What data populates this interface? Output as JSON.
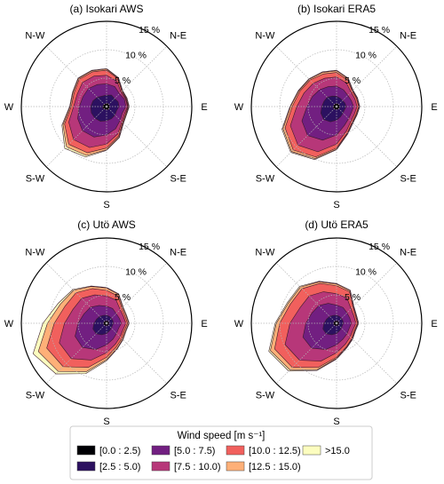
{
  "legend": {
    "title": "Wind speed [m s⁻¹]",
    "items": [
      {
        "label": "[0.0 : 2.5)",
        "color": "#000004"
      },
      {
        "label": "[2.5 : 5.0)",
        "color": "#2c1160"
      },
      {
        "label": "[5.0 : 7.5)",
        "color": "#721f81"
      },
      {
        "label": "[7.5 : 10.0)",
        "color": "#b73779"
      },
      {
        "label": "[10.0 : 12.5)",
        "color": "#f1605d"
      },
      {
        "label": "[12.5 : 15.0)",
        "color": "#feb078"
      },
      {
        "label": ">15.0",
        "color": "#fcfdbf"
      }
    ]
  },
  "chart_data": [
    {
      "type": "polar-area",
      "title": "(a) Isokari AWS",
      "directions": [
        "N",
        "NNE",
        "NE",
        "ENE",
        "E",
        "ESE",
        "SE",
        "SSE",
        "S",
        "SSW",
        "SW",
        "WSW",
        "W",
        "WNW",
        "NW",
        "NNW"
      ],
      "direction_labels": [
        "E",
        "N-E",
        "N-W",
        "W",
        "S-W",
        "S",
        "S-E"
      ],
      "rmax": 15,
      "ring_labels": [
        "5 %",
        "10 %",
        "15 %"
      ],
      "cumulative_percent": [
        [
          0.5,
          0.6,
          0.5,
          0.5,
          0.5,
          0.5,
          0.6,
          0.6,
          0.5,
          0.5,
          0.6,
          0.7,
          0.7,
          0.6,
          0.6,
          0.5
        ],
        [
          2.0,
          2.2,
          2.0,
          2.2,
          2.2,
          1.9,
          2.1,
          2.3,
          2.5,
          2.8,
          2.9,
          2.9,
          2.8,
          2.6,
          2.3,
          2.0
        ],
        [
          4.0,
          3.8,
          3.2,
          3.4,
          3.4,
          3.0,
          3.4,
          4.2,
          5.0,
          5.8,
          6.0,
          5.5,
          4.8,
          4.5,
          4.5,
          4.2
        ],
        [
          5.5,
          4.8,
          3.6,
          3.6,
          3.7,
          3.4,
          3.8,
          5.2,
          6.6,
          7.8,
          8.2,
          7.2,
          5.8,
          5.6,
          6.0,
          5.8
        ],
        [
          6.4,
          5.3,
          3.8,
          3.7,
          3.8,
          3.6,
          4.0,
          5.6,
          7.3,
          8.8,
          9.4,
          8.0,
          6.2,
          6.2,
          6.8,
          6.6
        ],
        [
          6.6,
          5.4,
          3.9,
          3.8,
          3.9,
          3.7,
          4.1,
          5.8,
          7.6,
          9.3,
          10.0,
          8.3,
          6.4,
          6.4,
          7.0,
          6.8
        ],
        [
          6.7,
          5.5,
          4.0,
          3.9,
          4.0,
          3.8,
          4.2,
          5.9,
          7.7,
          9.6,
          10.4,
          8.5,
          6.5,
          6.5,
          7.1,
          6.9
        ]
      ]
    },
    {
      "type": "polar-area",
      "title": "(b) Isokari ERA5",
      "directions": [
        "N",
        "NNE",
        "NE",
        "ENE",
        "E",
        "ESE",
        "SE",
        "SSE",
        "S",
        "SSW",
        "SW",
        "WSW",
        "W",
        "WNW",
        "NW",
        "NNW"
      ],
      "direction_labels": [
        "E",
        "N-E",
        "N-W",
        "W",
        "S-W",
        "S",
        "S-E"
      ],
      "rmax": 15,
      "ring_labels": [
        "5 %",
        "10 %",
        "15 %"
      ],
      "cumulative_percent": [
        [
          0.5,
          0.5,
          0.5,
          0.5,
          0.5,
          0.5,
          0.5,
          0.5,
          0.5,
          0.5,
          0.6,
          0.6,
          0.6,
          0.5,
          0.5,
          0.5
        ],
        [
          1.8,
          1.6,
          1.5,
          1.6,
          1.7,
          1.5,
          1.6,
          1.9,
          2.4,
          2.9,
          3.2,
          3.0,
          2.6,
          2.4,
          2.3,
          2.0
        ],
        [
          3.6,
          3.2,
          2.8,
          2.8,
          3.0,
          2.8,
          3.0,
          3.6,
          5.0,
          6.4,
          7.2,
          6.6,
          5.2,
          4.6,
          4.2,
          3.8
        ],
        [
          5.2,
          4.5,
          3.6,
          3.5,
          3.6,
          3.4,
          3.6,
          4.6,
          6.6,
          8.6,
          9.6,
          8.8,
          7.0,
          6.2,
          5.8,
          5.4
        ],
        [
          6.0,
          5.1,
          3.9,
          3.8,
          3.9,
          3.7,
          3.9,
          5.0,
          7.3,
          9.6,
          10.8,
          9.8,
          7.8,
          7.0,
          6.6,
          6.2
        ],
        [
          6.3,
          5.3,
          4.0,
          3.9,
          4.0,
          3.8,
          4.0,
          5.1,
          7.5,
          9.9,
          11.2,
          10.2,
          8.1,
          7.2,
          6.8,
          6.5
        ],
        [
          6.4,
          5.4,
          4.1,
          4.0,
          4.1,
          3.9,
          4.1,
          5.2,
          7.6,
          10.1,
          11.4,
          10.4,
          8.2,
          7.3,
          6.9,
          6.6
        ]
      ]
    },
    {
      "type": "polar-area",
      "title": "(c) Utö AWS",
      "directions": [
        "N",
        "NNE",
        "NE",
        "ENE",
        "E",
        "ESE",
        "SE",
        "SSE",
        "S",
        "SSW",
        "SW",
        "WSW",
        "W",
        "WNW",
        "NW",
        "NNW"
      ],
      "direction_labels": [
        "E",
        "N-E",
        "N-W",
        "W",
        "S-W",
        "S",
        "S-E"
      ],
      "rmax": 15,
      "ring_labels": [
        "5 %",
        "10 %",
        "15 %"
      ],
      "cumulative_percent": [
        [
          0.4,
          0.4,
          0.4,
          0.4,
          0.4,
          0.4,
          0.4,
          0.4,
          0.4,
          0.4,
          0.5,
          0.5,
          0.5,
          0.5,
          0.4,
          0.4
        ],
        [
          1.4,
          1.3,
          1.2,
          1.2,
          1.2,
          1.1,
          1.2,
          1.4,
          1.8,
          2.2,
          2.6,
          2.6,
          2.2,
          1.9,
          1.7,
          1.5
        ],
        [
          3.0,
          2.8,
          2.4,
          2.4,
          2.6,
          2.3,
          2.5,
          3.0,
          3.8,
          5.0,
          6.0,
          6.0,
          5.0,
          4.3,
          4.0,
          3.4
        ],
        [
          4.8,
          4.4,
          3.4,
          3.2,
          3.4,
          3.1,
          3.4,
          4.0,
          5.2,
          7.0,
          8.8,
          9.0,
          7.4,
          6.4,
          6.2,
          5.4
        ],
        [
          5.8,
          5.2,
          3.8,
          3.5,
          3.7,
          3.4,
          3.8,
          4.5,
          6.0,
          8.4,
          10.8,
          11.4,
          9.2,
          7.9,
          7.6,
          6.6
        ],
        [
          6.2,
          5.5,
          4.0,
          3.7,
          3.9,
          3.6,
          4.0,
          4.8,
          6.4,
          9.2,
          12.0,
          13.0,
          10.4,
          8.8,
          8.2,
          7.0
        ],
        [
          6.3,
          5.6,
          4.1,
          3.8,
          4.0,
          3.7,
          4.1,
          4.9,
          6.6,
          9.6,
          12.6,
          14.0,
          11.2,
          9.2,
          8.4,
          7.1
        ]
      ]
    },
    {
      "type": "polar-area",
      "title": "(d) Utö ERA5",
      "directions": [
        "N",
        "NNE",
        "NE",
        "ENE",
        "E",
        "ESE",
        "SE",
        "SSE",
        "S",
        "SSW",
        "SW",
        "WSW",
        "W",
        "WNW",
        "NW",
        "NNW"
      ],
      "direction_labels": [
        "E",
        "N-E",
        "N-W",
        "W",
        "S-W",
        "S",
        "S-E"
      ],
      "rmax": 15,
      "ring_labels": [
        "5 %",
        "10 %",
        "15 %"
      ],
      "cumulative_percent": [
        [
          0.4,
          0.4,
          0.4,
          0.4,
          0.4,
          0.4,
          0.4,
          0.4,
          0.4,
          0.4,
          0.5,
          0.5,
          0.5,
          0.5,
          0.4,
          0.4
        ],
        [
          1.4,
          1.3,
          1.2,
          1.2,
          1.2,
          1.1,
          1.2,
          1.4,
          1.8,
          2.2,
          2.6,
          2.6,
          2.2,
          1.9,
          1.7,
          1.5
        ],
        [
          3.2,
          3.0,
          2.6,
          2.5,
          2.6,
          2.4,
          2.6,
          3.0,
          3.8,
          5.0,
          6.2,
          6.4,
          5.4,
          4.7,
          4.4,
          3.8
        ],
        [
          5.2,
          4.8,
          3.6,
          3.3,
          3.4,
          3.1,
          3.4,
          4.0,
          5.2,
          7.2,
          9.2,
          9.8,
          8.2,
          7.0,
          6.8,
          6.0
        ],
        [
          6.6,
          6.0,
          4.1,
          3.6,
          3.7,
          3.4,
          3.8,
          4.5,
          6.0,
          8.4,
          11.0,
          11.8,
          10.0,
          8.8,
          8.6,
          7.6
        ],
        [
          6.9,
          6.2,
          4.2,
          3.7,
          3.8,
          3.5,
          3.9,
          4.6,
          6.2,
          8.8,
          11.6,
          12.6,
          10.6,
          9.2,
          9.0,
          7.9
        ],
        [
          7.0,
          6.3,
          4.3,
          3.8,
          3.9,
          3.6,
          4.0,
          4.7,
          6.3,
          9.0,
          11.9,
          12.9,
          10.8,
          9.4,
          9.2,
          8.0
        ]
      ]
    }
  ]
}
